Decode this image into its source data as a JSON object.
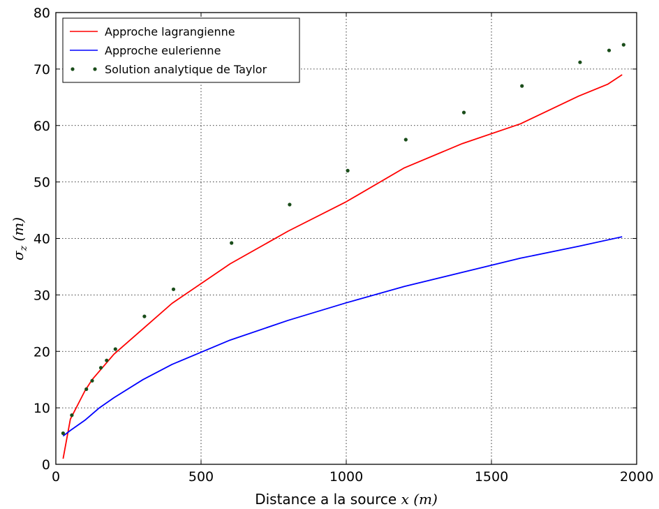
{
  "chart_data": {
    "type": "line",
    "title": "",
    "xlabel": "Distance a la source",
    "xlabel_var": "x (m)",
    "ylabel": "σ_z (m)",
    "ylabel_sym": "σ",
    "ylabel_sub": "z",
    "ylabel_unit": "(m)",
    "xlim": [
      0,
      2000
    ],
    "ylim": [
      0,
      80
    ],
    "xticks": [
      0,
      500,
      1000,
      1500,
      2000
    ],
    "yticks": [
      0,
      10,
      20,
      30,
      40,
      50,
      60,
      70,
      80
    ],
    "grid": true,
    "legend_position": "top-left",
    "series": [
      {
        "name": "Approche lagrangienne",
        "style": "line",
        "color": "#ff0000",
        "x": [
          25,
          50,
          75,
          100,
          125,
          150,
          175,
          200,
          300,
          400,
          600,
          800,
          1000,
          1200,
          1400,
          1600,
          1800,
          1900,
          1950
        ],
        "y": [
          1,
          8,
          10.5,
          13,
          15,
          16.5,
          18,
          19.5,
          24,
          28.5,
          35.5,
          41.3,
          46.5,
          52.5,
          56.8,
          60.3,
          65.2,
          67.3,
          69
        ]
      },
      {
        "name": "Approche eulerienne",
        "style": "line",
        "color": "#0000ff",
        "x": [
          25,
          50,
          100,
          150,
          200,
          300,
          400,
          600,
          800,
          1000,
          1200,
          1400,
          1600,
          1800,
          1950
        ],
        "y": [
          5,
          6,
          7.8,
          10,
          11.8,
          15,
          17.7,
          22,
          25.5,
          28.6,
          31.5,
          34,
          36.5,
          38.6,
          40.3
        ]
      },
      {
        "name": "Solution analytique de Taylor",
        "style": "scatter",
        "color": "#1a4d1a",
        "x": [
          25,
          55,
          105,
          125,
          155,
          175,
          205,
          305,
          405,
          605,
          805,
          1005,
          1205,
          1405,
          1605,
          1805,
          1905,
          1955
        ],
        "y": [
          5.5,
          8.7,
          13.3,
          14.8,
          17.1,
          18.4,
          20.4,
          26.2,
          31,
          39.2,
          46,
          52,
          57.5,
          62.3,
          67,
          71.2,
          73.3,
          74.3
        ]
      }
    ]
  }
}
